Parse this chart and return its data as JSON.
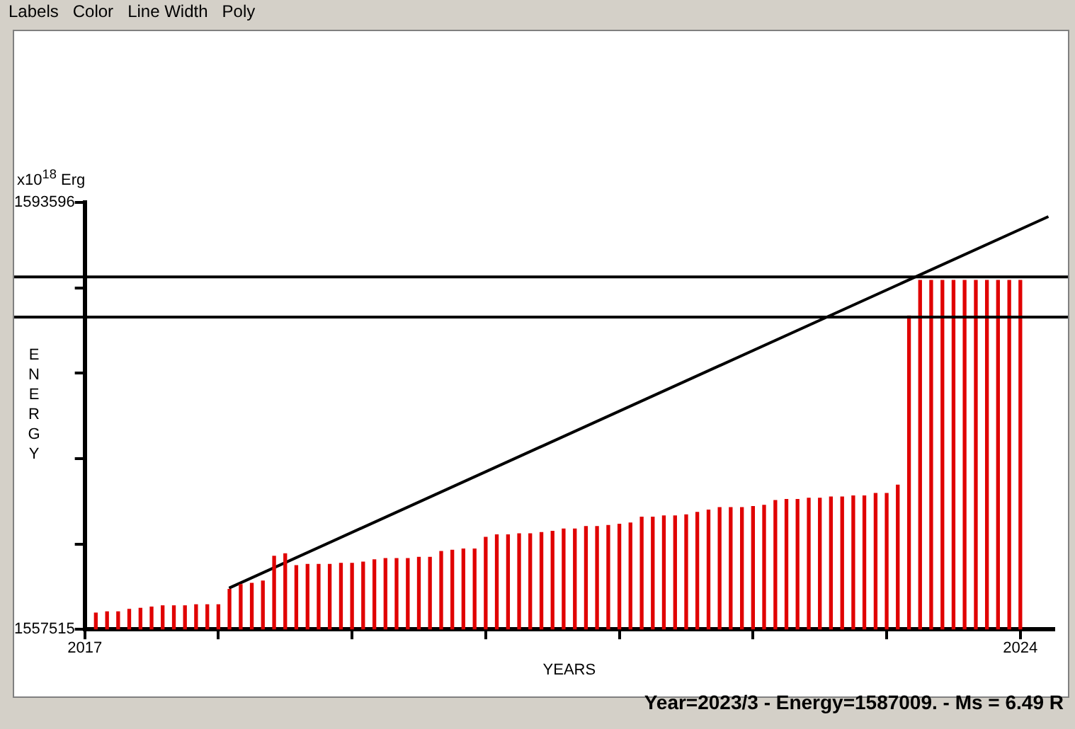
{
  "chart_data": {
    "type": "bar",
    "xlabel": "YEARS",
    "ylabel": "ENERGY",
    "annotations": [
      "x10$^{18}$ Erg",
      "Year=2023/3 - Energy=1587009. - Ms = 6.49 R",
      "Labels",
      "Color",
      "Line Width",
      "Poly"
    ],
    "xlim": [
      2017,
      2024.25
    ],
    "xticks": [
      2017,
      {
        "value": 2018,
        "label": null
      },
      {
        "value": 2019,
        "label": null
      },
      {
        "value": 2020,
        "label": null
      },
      {
        "value": 2021,
        "label": null
      },
      {
        "value": 2022,
        "label": null
      },
      {
        "value": 2023,
        "label": null
      },
      2024
    ],
    "ylim": [
      1557515,
      1593596
    ],
    "yticks": [
      1557515,
      {
        "value": 1564731,
        "label": null
      },
      {
        "value": 1571947,
        "label": null
      },
      {
        "value": 1579164,
        "label": null
      },
      {
        "value": 1586380,
        "label": null
      },
      1593596
    ],
    "grid": false,
    "legend": false,
    "marker": "none",
    "ref_lines": [
      {
        "axis": "y",
        "value": 1587300,
        "color": "#000000"
      },
      {
        "axis": "y",
        "value": 1583900,
        "color": "#000000"
      }
    ],
    "series": [
      {
        "color": "#e00000",
        "x": [
          2017.083,
          2017.167,
          2017.25,
          2017.333,
          2017.417,
          2017.5,
          2017.583,
          2017.667,
          2017.75,
          2017.833,
          2017.917,
          2018,
          2018.083,
          2018.167,
          2018.25,
          2018.333,
          2018.417,
          2018.5,
          2018.583,
          2018.667,
          2018.75,
          2018.833,
          2018.917,
          2019,
          2019.083,
          2019.167,
          2019.25,
          2019.333,
          2019.417,
          2019.5,
          2019.583,
          2019.667,
          2019.75,
          2019.833,
          2019.917,
          2020,
          2020.083,
          2020.167,
          2020.25,
          2020.333,
          2020.417,
          2020.5,
          2020.583,
          2020.667,
          2020.75,
          2020.833,
          2020.917,
          2021,
          2021.083,
          2021.167,
          2021.25,
          2021.333,
          2021.417,
          2021.5,
          2021.583,
          2021.667,
          2021.75,
          2021.833,
          2021.917,
          2022,
          2022.083,
          2022.167,
          2022.25,
          2022.333,
          2022.417,
          2022.5,
          2022.583,
          2022.667,
          2022.75,
          2022.833,
          2022.917,
          2023,
          2023.083,
          2023.167,
          2023.25,
          2023.333,
          2023.417,
          2023.5,
          2023.583,
          2023.667,
          2023.75,
          2023.833,
          2023.917,
          2024
        ],
        "values": [
          1558900,
          1559000,
          1559000,
          1559200,
          1559300,
          1559400,
          1559500,
          1559500,
          1559500,
          1559600,
          1559600,
          1559600,
          1560900,
          1561300,
          1561400,
          1561600,
          1563700,
          1563900,
          1562900,
          1563000,
          1563000,
          1563000,
          1563100,
          1563100,
          1563200,
          1563400,
          1563500,
          1563500,
          1563500,
          1563600,
          1563600,
          1564100,
          1564200,
          1564300,
          1564300,
          1565300,
          1565500,
          1565500,
          1565600,
          1565600,
          1565700,
          1565800,
          1566000,
          1566000,
          1566200,
          1566200,
          1566300,
          1566400,
          1566500,
          1567000,
          1567000,
          1567100,
          1567100,
          1567200,
          1567400,
          1567600,
          1567800,
          1567800,
          1567800,
          1567900,
          1568000,
          1568400,
          1568500,
          1568500,
          1568600,
          1568600,
          1568700,
          1568700,
          1568800,
          1568800,
          1569000,
          1569000,
          1569700,
          1584000,
          1587000,
          1587000,
          1587000,
          1587000,
          1587000,
          1587000,
          1587000,
          1587000,
          1587000,
          1587000
        ]
      },
      {
        "type": "line",
        "color": "#000000",
        "x": [
          2018.08,
          2024.21
        ],
        "values": [
          1561000,
          1592400
        ]
      }
    ]
  }
}
